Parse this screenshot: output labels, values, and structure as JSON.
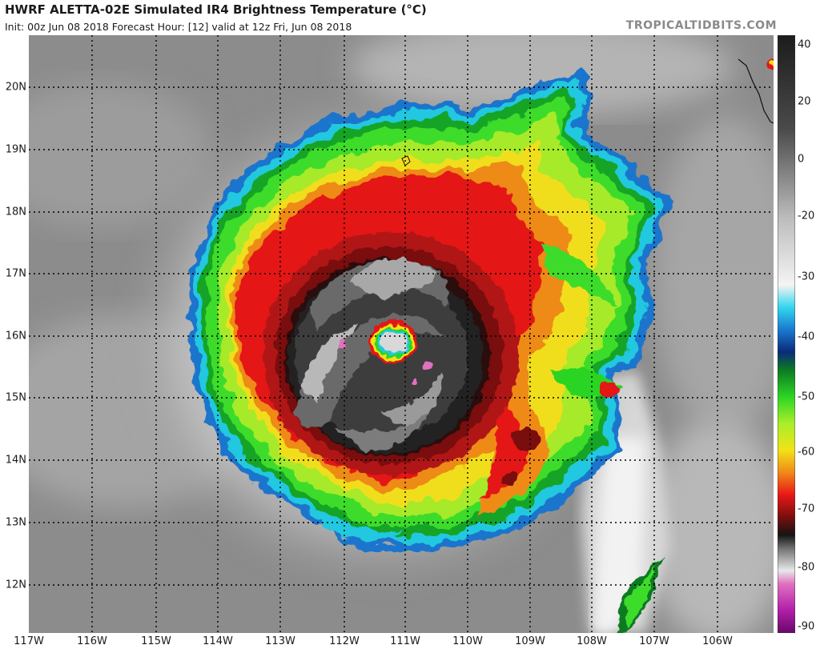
{
  "header": {
    "title": "HWRF ALETTA-02E Simulated IR4 Brightness Temperature (°C)",
    "subtitle": "Init: 00z Jun 08 2018   Forecast Hour: [12]   valid at 12z Fri, Jun 08 2018",
    "brand": "TROPICALTIDBITS.COM"
  },
  "map": {
    "lat_labels": [
      "20N",
      "19N",
      "18N",
      "17N",
      "16N",
      "15N",
      "14N",
      "13N",
      "12N"
    ],
    "lon_labels": [
      "117W",
      "116W",
      "115W",
      "114W",
      "113W",
      "112W",
      "111W",
      "110W",
      "109W",
      "108W",
      "107W",
      "106W"
    ],
    "lon_range": [
      -117.0,
      -104.7
    ],
    "lat_range": [
      11.2,
      20.9
    ],
    "storm_center": {
      "lon": -111.2,
      "lat": 15.95
    },
    "gridlines": "dotted"
  },
  "colorbar": {
    "labels": [
      "40",
      "20",
      "0",
      "-20",
      "-30",
      "-40",
      "-50",
      "-60",
      "-70",
      "-80",
      "-90"
    ],
    "range": [
      -93,
      41
    ],
    "stops": [
      {
        "t": 41,
        "color": "#1c1c1c"
      },
      {
        "t": 20,
        "color": "#4a4a4a"
      },
      {
        "t": 0,
        "color": "#bcbcbc"
      },
      {
        "t": -15,
        "color": "#f4f4f4"
      },
      {
        "t": -20,
        "color": "#33d6ee"
      },
      {
        "t": -25,
        "color": "#1a7ad0"
      },
      {
        "t": -30,
        "color": "#0a2a7a"
      },
      {
        "t": -34,
        "color": "#0c7a22"
      },
      {
        "t": -40,
        "color": "#2cd424"
      },
      {
        "t": -46,
        "color": "#a8ee2a"
      },
      {
        "t": -52,
        "color": "#f2e218"
      },
      {
        "t": -57,
        "color": "#f08a18"
      },
      {
        "t": -62,
        "color": "#e81818"
      },
      {
        "t": -67,
        "color": "#7a0e0e"
      },
      {
        "t": -71,
        "color": "#141414"
      },
      {
        "t": -74,
        "color": "#707070"
      },
      {
        "t": -79,
        "color": "#e8e8e8"
      },
      {
        "t": -82,
        "color": "#e070c0"
      },
      {
        "t": -88,
        "color": "#b01ea8"
      },
      {
        "t": -93,
        "color": "#680868"
      }
    ]
  }
}
